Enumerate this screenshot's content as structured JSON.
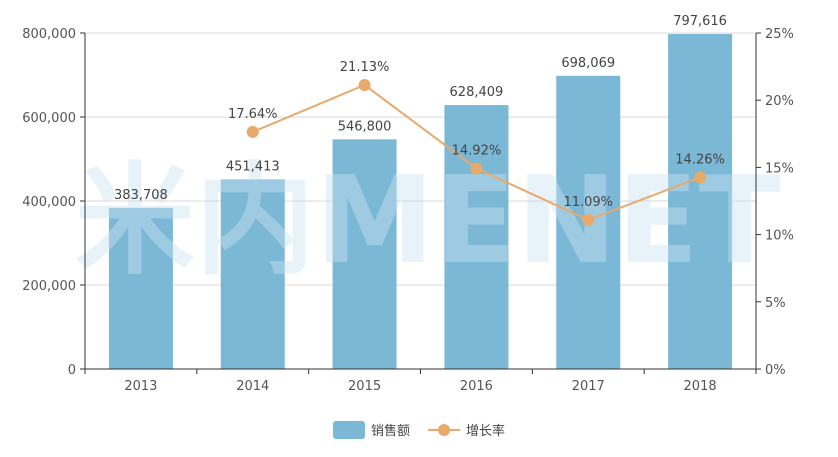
{
  "chart_data": {
    "type": "bar",
    "categories": [
      "2013",
      "2014",
      "2015",
      "2016",
      "2017",
      "2018"
    ],
    "series": [
      {
        "name": "销售额",
        "type": "bar",
        "axis": "left",
        "color": "#7ab8d6",
        "values": [
          383708,
          451413,
          546800,
          628409,
          698069,
          797616
        ],
        "labels": [
          "383,708",
          "451,413",
          "546,800",
          "628,409",
          "698,069",
          "797,616"
        ]
      },
      {
        "name": "增长率",
        "type": "line",
        "axis": "right",
        "color": "#e8a96a",
        "values": [
          null,
          17.64,
          21.13,
          14.92,
          11.09,
          14.26
        ],
        "labels": [
          "",
          "17.64%",
          "21.13%",
          "14.92%",
          "11.09%",
          "14.26%"
        ]
      }
    ],
    "y_left": {
      "ylim": [
        0,
        800000
      ],
      "ticks": [
        0,
        200000,
        400000,
        600000,
        800000
      ],
      "tick_labels": [
        "0",
        "200,000",
        "400,000",
        "600,000",
        "800,000"
      ]
    },
    "y_right": {
      "ylim": [
        0,
        25
      ],
      "ticks": [
        0,
        5,
        10,
        15,
        20,
        25
      ],
      "tick_labels": [
        "0%",
        "5%",
        "10%",
        "15%",
        "20%",
        "25%"
      ]
    },
    "grid": true,
    "legend_position": "bottom-center",
    "watermark": "米内MENET"
  }
}
